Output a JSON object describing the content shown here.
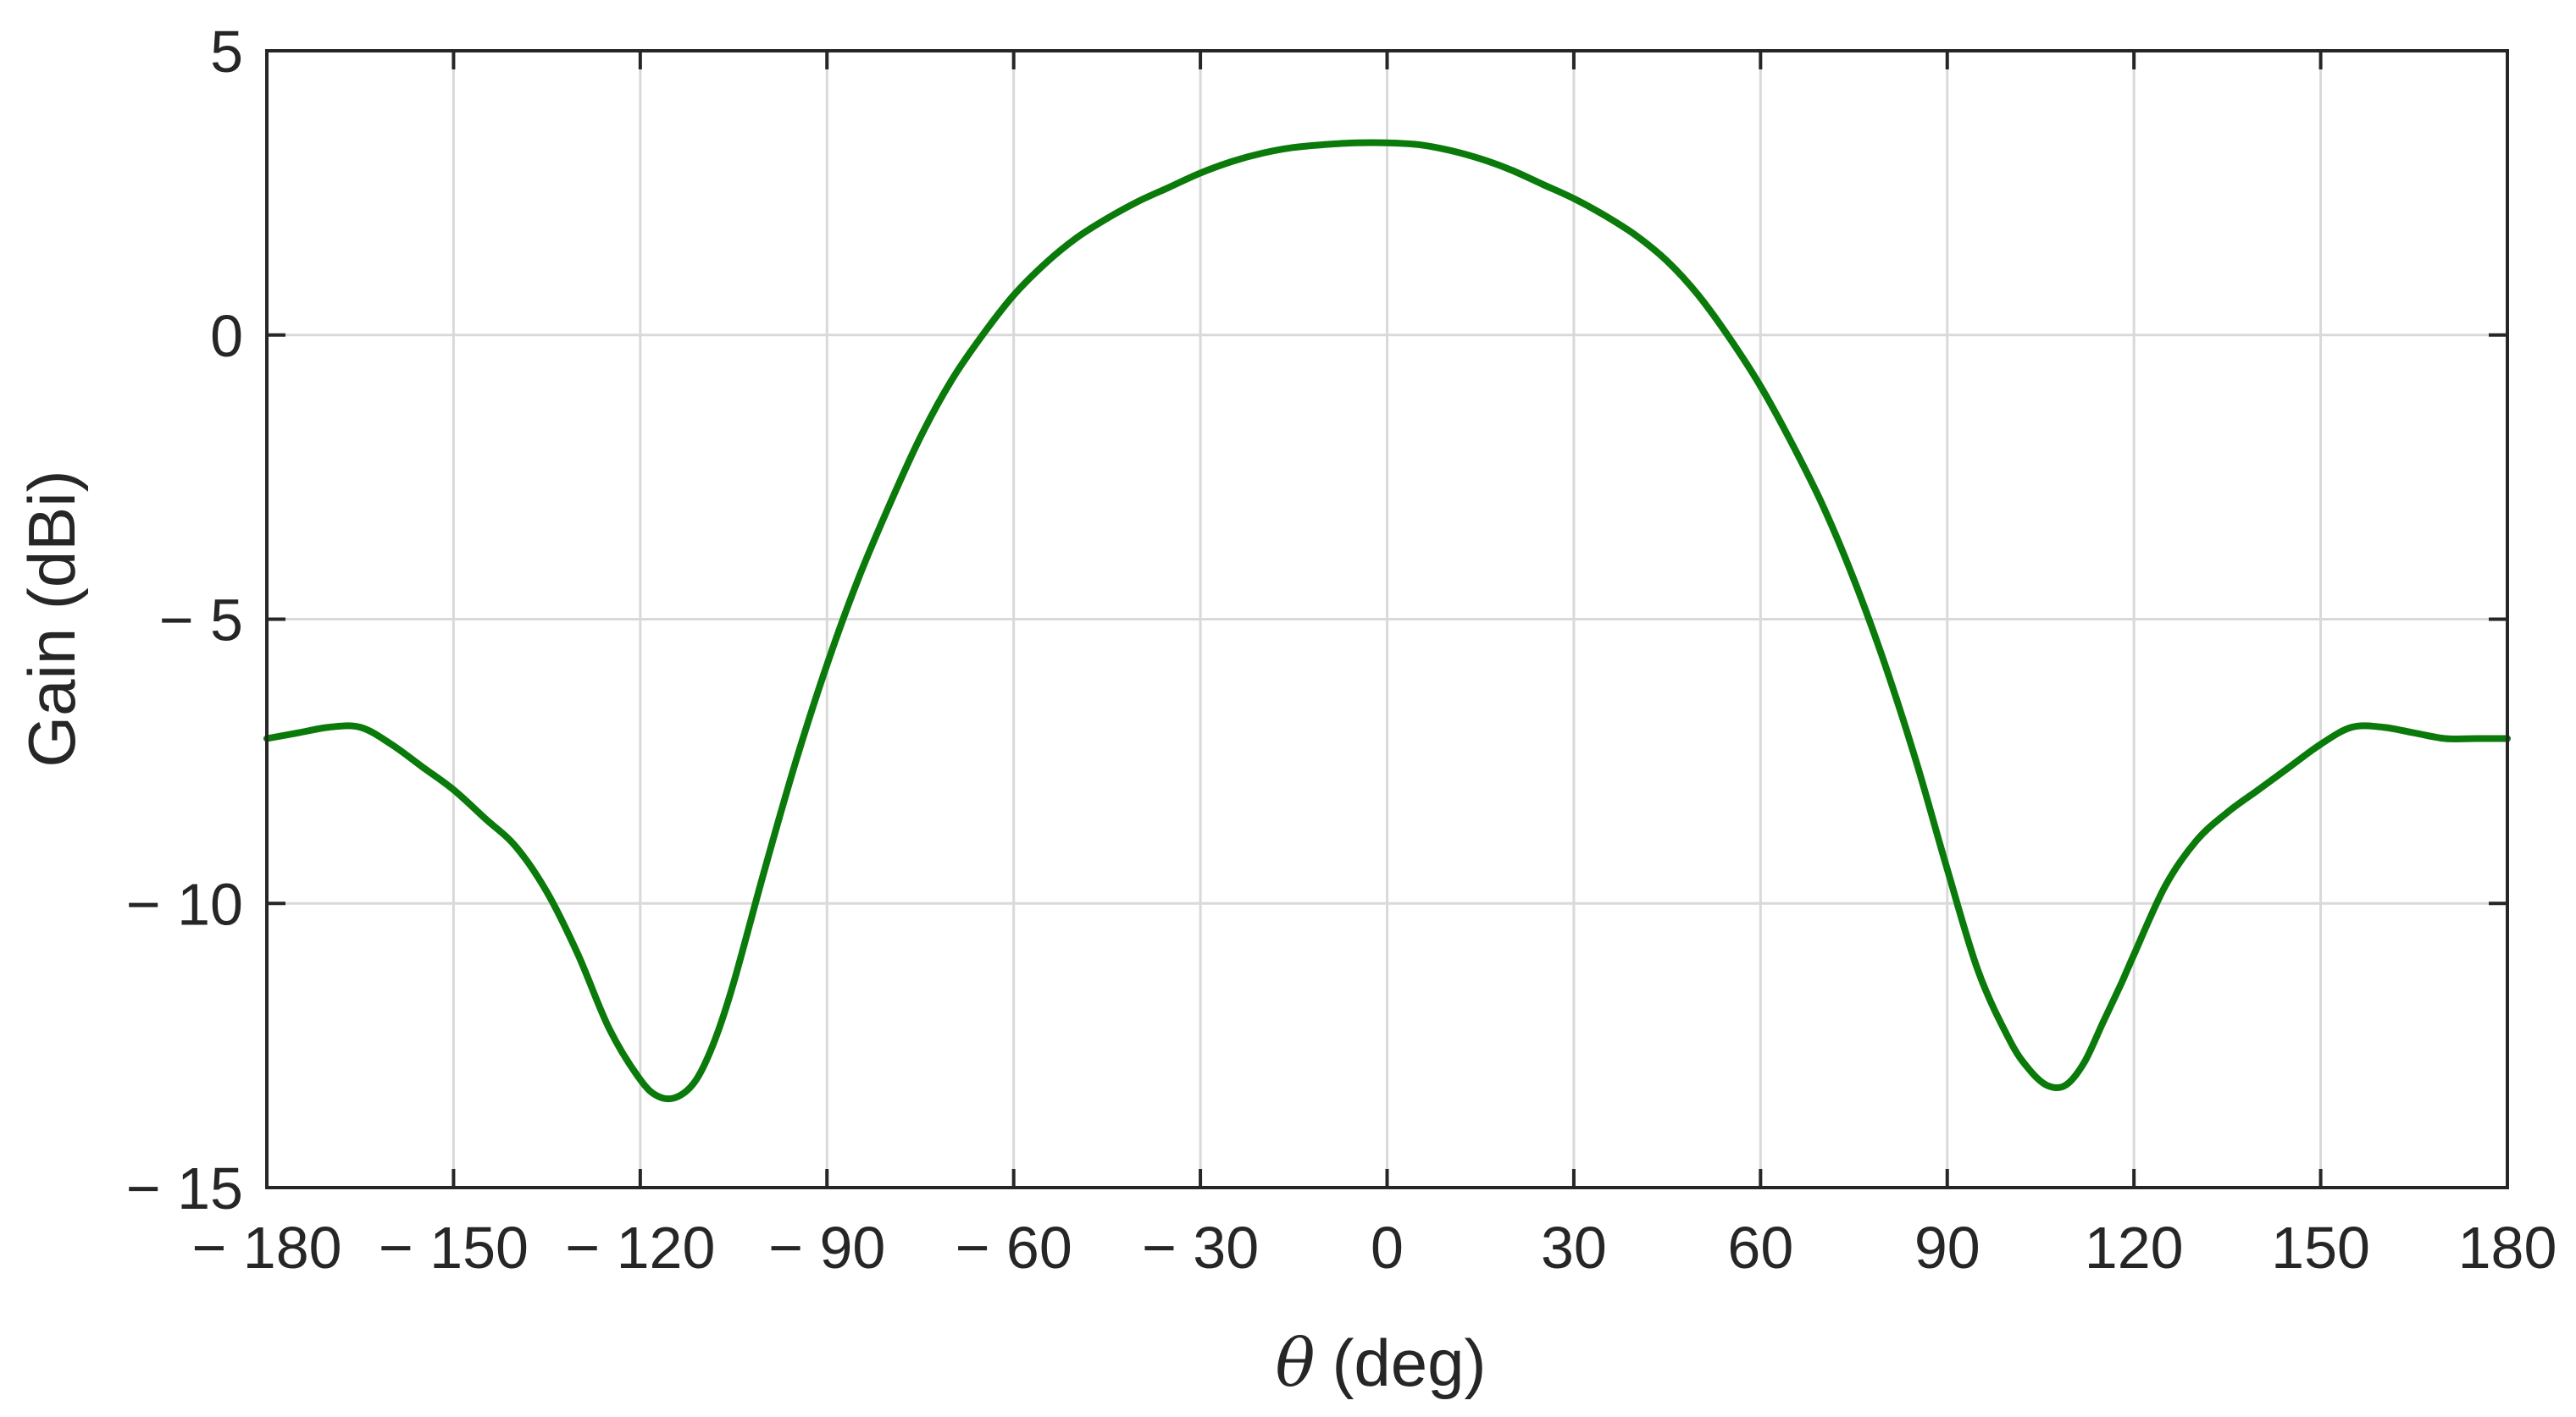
{
  "chart_data": {
    "type": "line",
    "title": "",
    "xlabel_symbol": "θ",
    "xlabel_unit": "(deg)",
    "xlabel": "θ (deg)",
    "ylabel": "Gain (dBi)",
    "xlim": [
      -180,
      180
    ],
    "ylim": [
      -15,
      5
    ],
    "xticks": [
      -180,
      -150,
      -120,
      -90,
      -60,
      -30,
      0,
      30,
      60,
      90,
      120,
      150,
      180
    ],
    "yticks": [
      -15,
      -10,
      -5,
      0,
      5
    ],
    "xtick_labels": [
      "− 180",
      "− 150",
      "− 120",
      "− 90",
      "− 60",
      "− 30",
      "0",
      "30",
      "60",
      "90",
      "120",
      "150",
      "180"
    ],
    "ytick_labels": [
      "− 15",
      "− 10",
      "− 5",
      "0",
      "5"
    ],
    "grid": true,
    "colors": {
      "series": "#0a7a0a",
      "grid": "#d9d9d9",
      "axis": "#262626"
    },
    "series": [
      {
        "x": [
          -180,
          -175,
          -170,
          -165,
          -160,
          -155,
          -150,
          -145,
          -140,
          -135,
          -130,
          -125,
          -120,
          -117,
          -114,
          -111,
          -108,
          -105,
          -100,
          -95,
          -90,
          -85,
          -80,
          -75,
          -70,
          -65,
          -60,
          -55,
          -50,
          -45,
          -40,
          -35,
          -30,
          -25,
          -20,
          -15,
          -10,
          -5,
          0,
          5,
          10,
          15,
          20,
          25,
          30,
          35,
          40,
          45,
          50,
          55,
          60,
          65,
          70,
          75,
          80,
          85,
          90,
          95,
          100,
          103,
          106,
          109,
          112,
          115,
          118,
          120,
          125,
          130,
          135,
          140,
          145,
          150,
          155,
          160,
          165,
          170,
          175,
          180
        ],
        "y": [
          -7.1,
          -7.0,
          -6.9,
          -6.9,
          -7.2,
          -7.6,
          -8.0,
          -8.5,
          -9.0,
          -9.8,
          -10.9,
          -12.2,
          -13.1,
          -13.4,
          -13.4,
          -13.1,
          -12.4,
          -11.4,
          -9.4,
          -7.5,
          -5.8,
          -4.3,
          -3.0,
          -1.8,
          -0.8,
          0.0,
          0.7,
          1.25,
          1.7,
          2.05,
          2.35,
          2.6,
          2.85,
          3.05,
          3.2,
          3.3,
          3.35,
          3.38,
          3.38,
          3.35,
          3.25,
          3.1,
          2.9,
          2.65,
          2.4,
          2.1,
          1.75,
          1.3,
          0.7,
          -0.05,
          -0.9,
          -1.9,
          -3.0,
          -4.3,
          -5.8,
          -7.5,
          -9.4,
          -11.2,
          -12.4,
          -12.9,
          -13.2,
          -13.2,
          -12.8,
          -12.1,
          -11.4,
          -10.9,
          -9.7,
          -8.9,
          -8.4,
          -8.0,
          -7.6,
          -7.2,
          -6.9,
          -6.9,
          -7.0,
          -7.1,
          -7.1,
          -7.1
        ]
      }
    ]
  }
}
